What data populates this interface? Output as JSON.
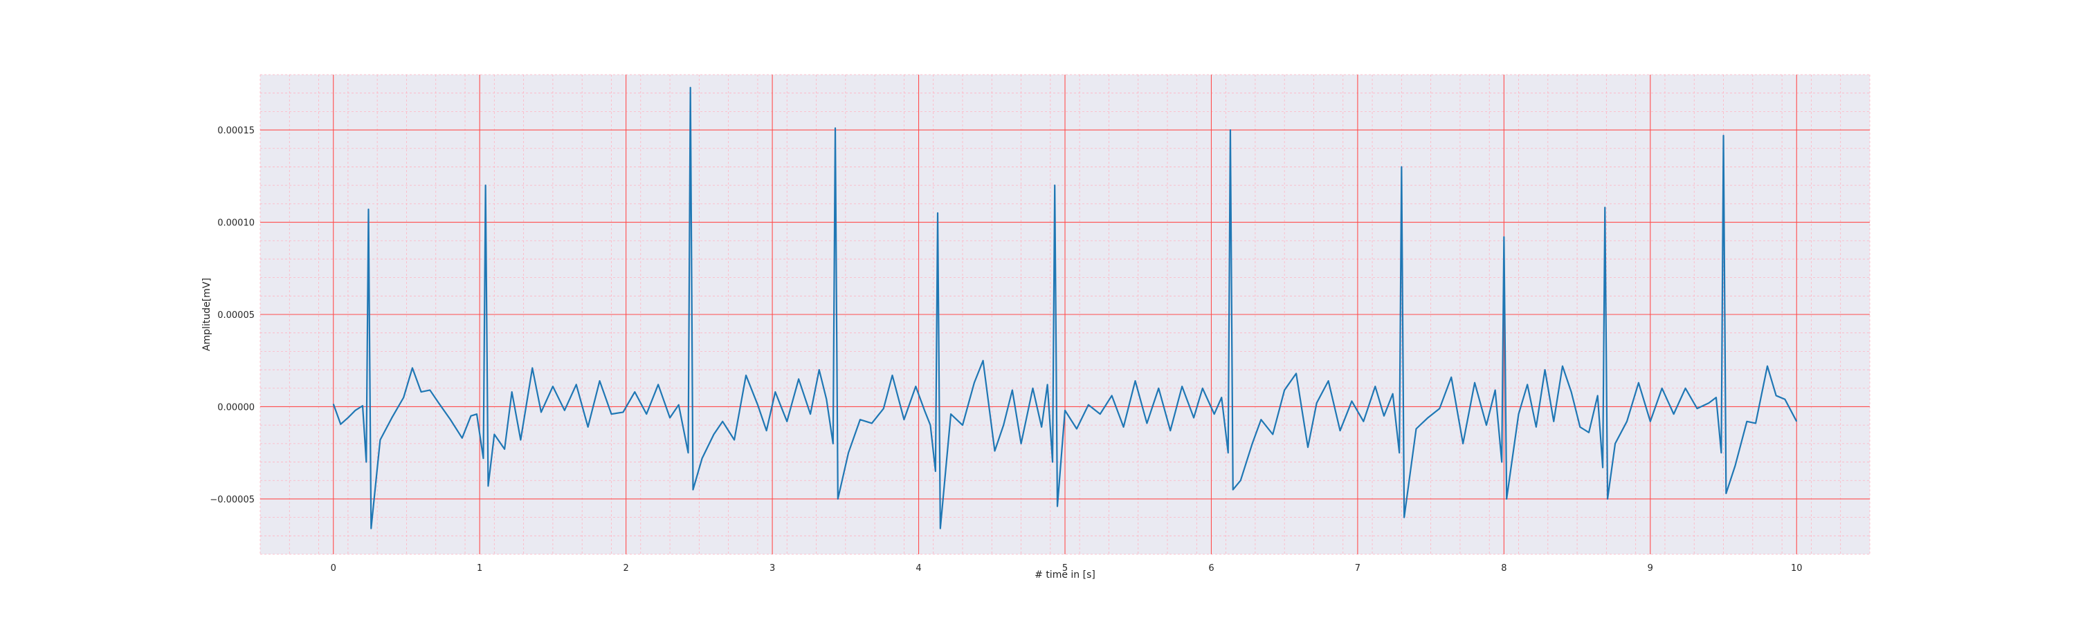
{
  "chart_data": {
    "type": "line",
    "title": "",
    "xlabel": "# time in [s]",
    "ylabel": "Amplitude[mV]",
    "xlim": [
      -0.5,
      10.5
    ],
    "ylim": [
      -8e-05,
      0.00018
    ],
    "xticks": [
      0,
      1,
      2,
      3,
      4,
      5,
      6,
      7,
      8,
      9,
      10
    ],
    "xtick_labels": [
      "0",
      "1",
      "2",
      "3",
      "4",
      "5",
      "6",
      "7",
      "8",
      "9",
      "10"
    ],
    "yticks": [
      -5e-05,
      0,
      5e-05,
      0.0001,
      0.00015
    ],
    "ytick_labels": [
      "−0.00005",
      "0.00000",
      "0.00005",
      "0.00010",
      "0.00015"
    ],
    "grid": {
      "major": true,
      "minor": true,
      "major_color": "#ff4d4d",
      "minor_color": "#ffb3c1"
    },
    "background_color": "#eaeaf2",
    "series": [
      {
        "color": "#1f77b4",
        "beats": [
          {
            "t": 0.24,
            "r": 0.000107,
            "q": -3e-05,
            "s": -6.6e-05
          },
          {
            "t": 1.04,
            "r": 0.00012,
            "q": -2.8e-05,
            "s": -4.3e-05
          },
          {
            "t": 2.44,
            "r": 0.000173,
            "q": -2.5e-05,
            "s": -4.5e-05
          },
          {
            "t": 3.43,
            "r": 0.000151,
            "q": -2e-05,
            "s": -5e-05
          },
          {
            "t": 4.13,
            "r": 0.000105,
            "q": -3.5e-05,
            "s": -6.6e-05
          },
          {
            "t": 4.93,
            "r": 0.00012,
            "q": -3e-05,
            "s": -5.4e-05
          },
          {
            "t": 6.13,
            "r": 0.00015,
            "q": -2.5e-05,
            "s": -4.5e-05
          },
          {
            "t": 7.3,
            "r": 0.00013,
            "q": -2.5e-05,
            "s": -6e-05
          },
          {
            "t": 8.0,
            "r": 9.2e-05,
            "q": -3e-05,
            "s": -5e-05
          },
          {
            "t": 8.69,
            "r": 0.000108,
            "q": -3.3e-05,
            "s": -5e-05
          },
          {
            "t": 9.5,
            "r": 0.000147,
            "q": -2.5e-05,
            "s": -4.7e-05
          }
        ],
        "baseline": [
          [
            0.0,
            1.5e-06
          ],
          [
            0.05,
            -9.5e-06
          ],
          [
            0.1,
            -6e-06
          ],
          [
            0.15,
            -2e-06
          ],
          [
            0.2,
            5e-07
          ],
          [
            0.32,
            -1.8e-05
          ],
          [
            0.4,
            -6e-06
          ],
          [
            0.48,
            5e-06
          ],
          [
            0.54,
            2.1e-05
          ],
          [
            0.6,
            8e-06
          ],
          [
            0.66,
            9e-06
          ],
          [
            0.72,
            2e-06
          ],
          [
            0.8,
            -7e-06
          ],
          [
            0.88,
            -1.7e-05
          ],
          [
            0.94,
            -5e-06
          ],
          [
            0.98,
            -4e-06
          ],
          [
            1.1,
            -1.5e-05
          ],
          [
            1.17,
            -2.3e-05
          ],
          [
            1.22,
            8e-06
          ],
          [
            1.28,
            -1.8e-05
          ],
          [
            1.36,
            2.1e-05
          ],
          [
            1.42,
            -3e-06
          ],
          [
            1.5,
            1.1e-05
          ],
          [
            1.58,
            -2e-06
          ],
          [
            1.66,
            1.2e-05
          ],
          [
            1.74,
            -1.1e-05
          ],
          [
            1.82,
            1.4e-05
          ],
          [
            1.9,
            -4e-06
          ],
          [
            1.98,
            -3e-06
          ],
          [
            2.06,
            8e-06
          ],
          [
            2.14,
            -4e-06
          ],
          [
            2.22,
            1.2e-05
          ],
          [
            2.3,
            -6e-06
          ],
          [
            2.36,
            1e-06
          ],
          [
            2.52,
            -2.8e-05
          ],
          [
            2.6,
            -1.5e-05
          ],
          [
            2.66,
            -8e-06
          ],
          [
            2.74,
            -1.8e-05
          ],
          [
            2.82,
            1.7e-05
          ],
          [
            2.9,
            1e-06
          ],
          [
            2.96,
            -1.3e-05
          ],
          [
            3.02,
            8e-06
          ],
          [
            3.1,
            -8e-06
          ],
          [
            3.18,
            1.5e-05
          ],
          [
            3.26,
            -4e-06
          ],
          [
            3.32,
            2e-05
          ],
          [
            3.37,
            4e-06
          ],
          [
            3.52,
            -2.5e-05
          ],
          [
            3.6,
            -7e-06
          ],
          [
            3.68,
            -9e-06
          ],
          [
            3.76,
            -1e-06
          ],
          [
            3.82,
            1.7e-05
          ],
          [
            3.9,
            -7e-06
          ],
          [
            3.98,
            1.1e-05
          ],
          [
            4.04,
            -2e-06
          ],
          [
            4.08,
            -1e-05
          ],
          [
            4.22,
            -4e-06
          ],
          [
            4.3,
            -1e-05
          ],
          [
            4.38,
            1.3e-05
          ],
          [
            4.44,
            2.5e-05
          ],
          [
            4.52,
            -2.4e-05
          ],
          [
            4.58,
            -1e-05
          ],
          [
            4.64,
            9e-06
          ],
          [
            4.7,
            -2e-05
          ],
          [
            4.78,
            1e-05
          ],
          [
            4.84,
            -1.1e-05
          ],
          [
            4.88,
            1.2e-05
          ],
          [
            5.0,
            -2e-06
          ],
          [
            5.08,
            -1.2e-05
          ],
          [
            5.16,
            1e-06
          ],
          [
            5.24,
            -4e-06
          ],
          [
            5.32,
            6e-06
          ],
          [
            5.4,
            -1.1e-05
          ],
          [
            5.48,
            1.4e-05
          ],
          [
            5.56,
            -9e-06
          ],
          [
            5.64,
            1e-05
          ],
          [
            5.72,
            -1.3e-05
          ],
          [
            5.8,
            1.1e-05
          ],
          [
            5.88,
            -6e-06
          ],
          [
            5.94,
            1e-05
          ],
          [
            6.02,
            -4e-06
          ],
          [
            6.07,
            5e-06
          ],
          [
            6.2,
            -4e-05
          ],
          [
            6.28,
            -2e-05
          ],
          [
            6.34,
            -7e-06
          ],
          [
            6.42,
            -1.5e-05
          ],
          [
            6.5,
            9e-06
          ],
          [
            6.58,
            1.8e-05
          ],
          [
            6.66,
            -2.2e-05
          ],
          [
            6.72,
            2e-06
          ],
          [
            6.8,
            1.4e-05
          ],
          [
            6.88,
            -1.3e-05
          ],
          [
            6.96,
            3e-06
          ],
          [
            7.04,
            -8e-06
          ],
          [
            7.12,
            1.1e-05
          ],
          [
            7.18,
            -5e-06
          ],
          [
            7.24,
            7e-06
          ],
          [
            7.4,
            -1.2e-05
          ],
          [
            7.48,
            -6e-06
          ],
          [
            7.56,
            -1e-06
          ],
          [
            7.64,
            1.6e-05
          ],
          [
            7.72,
            -2e-05
          ],
          [
            7.8,
            1.3e-05
          ],
          [
            7.88,
            -1e-05
          ],
          [
            7.94,
            9e-06
          ],
          [
            8.1,
            -4e-06
          ],
          [
            8.16,
            1.2e-05
          ],
          [
            8.22,
            -1.1e-05
          ],
          [
            8.28,
            2e-05
          ],
          [
            8.34,
            -8e-06
          ],
          [
            8.4,
            2.2e-05
          ],
          [
            8.46,
            8e-06
          ],
          [
            8.52,
            -1.1e-05
          ],
          [
            8.58,
            -1.4e-05
          ],
          [
            8.64,
            6e-06
          ],
          [
            8.76,
            -2e-05
          ],
          [
            8.84,
            -8e-06
          ],
          [
            8.92,
            1.3e-05
          ],
          [
            9.0,
            -8e-06
          ],
          [
            9.08,
            1e-05
          ],
          [
            9.16,
            -4e-06
          ],
          [
            9.24,
            1e-05
          ],
          [
            9.32,
            -1e-06
          ],
          [
            9.4,
            2e-06
          ],
          [
            9.45,
            5e-06
          ],
          [
            9.58,
            -3.2e-05
          ],
          [
            9.66,
            -8e-06
          ],
          [
            9.72,
            -9e-06
          ],
          [
            9.8,
            2.2e-05
          ],
          [
            9.86,
            6e-06
          ],
          [
            9.92,
            4e-06
          ],
          [
            10.0,
            -8e-06
          ]
        ]
      }
    ]
  }
}
